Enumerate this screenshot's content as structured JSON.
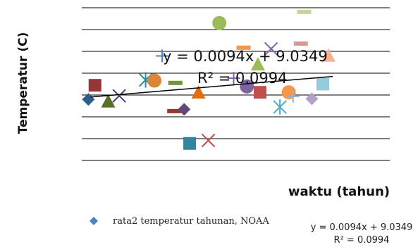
{
  "colors": {
    "gridline": "#000000",
    "trendline": "#000000",
    "legend_marker": "#4f81bd"
  },
  "chart_data": {
    "type": "scatter",
    "title": "",
    "xlabel": "waktu (tahun)",
    "ylabel": "Temperatur (C)",
    "gridlines": "horizontal",
    "axis_ticks_visible": false,
    "legend": {
      "position": "bottom-left",
      "entries": [
        {
          "label": "rata2 temperatur tahunan, NOAA",
          "marker": "diamond",
          "color": "#4f81bd"
        }
      ],
      "trendline_label": {
        "equation": "y = 0.0094x + 9.0349",
        "r2": "R² = 0.0994"
      }
    },
    "trendline": {
      "type": "linear",
      "equation": "y = 0.0094x + 9.0349",
      "r2": "R² = 0.0994",
      "slope": 0.0094,
      "intercept": 9.0349
    },
    "points": [
      {
        "shape": "diamond",
        "color": "#2e5d8e",
        "x": 0.6,
        "y": 5.2
      },
      {
        "shape": "square",
        "color": "#953735",
        "x": 1.2,
        "y": 6.4
      },
      {
        "shape": "triangle",
        "color": "#5a6e2a",
        "x": 2.4,
        "y": 5.05
      },
      {
        "shape": "x",
        "color": "#4b3a78",
        "x": 3.4,
        "y": 5.5
      },
      {
        "shape": "star",
        "color": "#2e8aa0",
        "x": 5.8,
        "y": 6.85
      },
      {
        "shape": "circle",
        "color": "#d9863a",
        "x": 6.6,
        "y": 6.8
      },
      {
        "shape": "plus",
        "color": "#4f81bd",
        "x": 7.3,
        "y": 8.9
      },
      {
        "shape": "dash",
        "color": "#76923c",
        "x": 8.5,
        "y": 6.6
      },
      {
        "shape": "dash",
        "color": "#953735",
        "x": 8.4,
        "y": 4.2
      },
      {
        "shape": "diamond",
        "color": "#604a7b",
        "x": 9.3,
        "y": 4.35
      },
      {
        "shape": "square",
        "color": "#31859c",
        "x": 9.8,
        "y": 1.45
      },
      {
        "shape": "triangle",
        "color": "#e46c0a",
        "x": 10.6,
        "y": 5.8
      },
      {
        "shape": "x",
        "color": "#c0504d",
        "x": 11.5,
        "y": 1.7
      },
      {
        "shape": "circle",
        "color": "#9bbb59",
        "x": 12.5,
        "y": 11.7
      },
      {
        "shape": "plus",
        "color": "#8064a2",
        "x": 13.8,
        "y": 7.0
      },
      {
        "shape": "dash",
        "color": "#f79646",
        "x": 14.7,
        "y": 9.6
      },
      {
        "shape": "circle",
        "color": "#8064a2",
        "x": 15.0,
        "y": 6.3
      },
      {
        "shape": "triangle",
        "color": "#9bbb59",
        "x": 16.0,
        "y": 8.2
      },
      {
        "shape": "square",
        "color": "#c0504d",
        "x": 16.2,
        "y": 5.8
      },
      {
        "shape": "x",
        "color": "#8064a2",
        "x": 17.2,
        "y": 9.5
      },
      {
        "shape": "star",
        "color": "#4bacc6",
        "x": 18.0,
        "y": 4.55
      },
      {
        "shape": "circle",
        "color": "#f79646",
        "x": 18.8,
        "y": 5.8
      },
      {
        "shape": "plus",
        "color": "#95b3d7",
        "x": 19.2,
        "y": 5.45
      },
      {
        "shape": "dash",
        "color": "#d99694",
        "x": 19.9,
        "y": 9.95
      },
      {
        "shape": "dash",
        "color": "#c3d69b",
        "x": 20.2,
        "y": 12.65
      },
      {
        "shape": "diamond",
        "color": "#b2a1c7",
        "x": 20.9,
        "y": 5.25
      },
      {
        "shape": "square",
        "color": "#93cddd",
        "x": 21.9,
        "y": 6.5
      },
      {
        "shape": "triangle",
        "color": "#fab08c",
        "x": 22.4,
        "y": 8.95
      }
    ]
  }
}
